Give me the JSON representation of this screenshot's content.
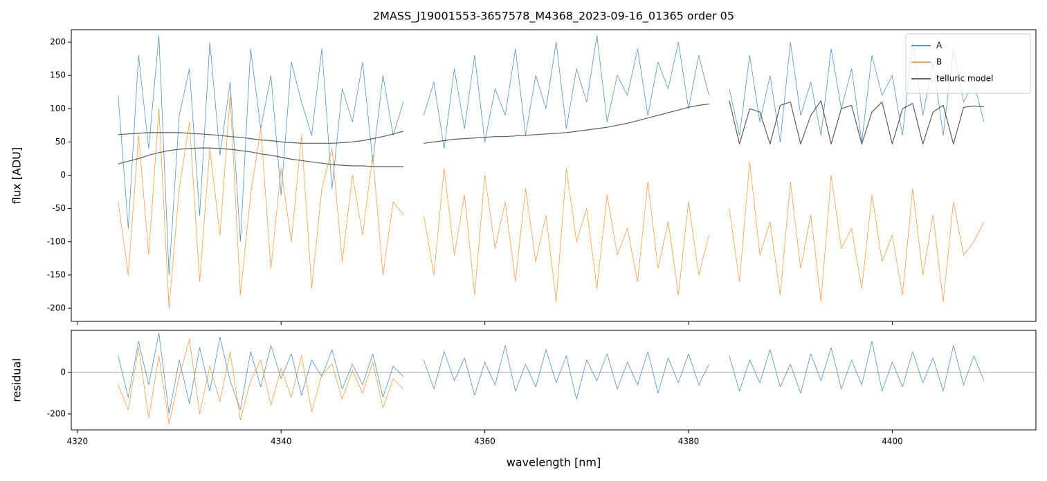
{
  "chart_data": [
    {
      "type": "line",
      "title": "2MASS_J19001553-3657578_M4368_2023-09-16_01365  order 05",
      "ylabel": "flux [ADU]",
      "legend": "upper right",
      "x": [
        4324,
        4325,
        4326,
        4327,
        4328,
        4329,
        4330,
        4331,
        4332,
        4333,
        4334,
        4335,
        4336,
        4337,
        4338,
        4339,
        4340,
        4341,
        4342,
        4343,
        4344,
        4345,
        4346,
        4347,
        4348,
        4349,
        4350,
        4351,
        4352,
        4353,
        4354,
        4355,
        4356,
        4357,
        4358,
        4359,
        4360,
        4361,
        4362,
        4363,
        4364,
        4365,
        4366,
        4367,
        4368,
        4369,
        4370,
        4371,
        4372,
        4373,
        4374,
        4375,
        4376,
        4377,
        4378,
        4379,
        4380,
        4381,
        4382,
        4383,
        4384,
        4385,
        4386,
        4387,
        4388,
        4389,
        4390,
        4391,
        4392,
        4393,
        4394,
        4395,
        4396,
        4397,
        4398,
        4399,
        4400,
        4401,
        4402,
        4403,
        4404,
        4405,
        4406,
        4407,
        4408,
        4409
      ],
      "series": [
        {
          "name": "A",
          "color": "#1f77b4",
          "values": [
            120,
            -80,
            180,
            40,
            210,
            -150,
            90,
            160,
            -60,
            200,
            30,
            140,
            -100,
            190,
            70,
            150,
            -30,
            170,
            110,
            60,
            190,
            -20,
            130,
            80,
            170,
            20,
            150,
            60,
            110,
            null,
            90,
            140,
            40,
            160,
            70,
            180,
            50,
            130,
            90,
            190,
            60,
            150,
            100,
            200,
            70,
            160,
            110,
            210,
            80,
            150,
            120,
            190,
            90,
            170,
            130,
            200,
            100,
            180,
            120,
            null,
            130,
            60,
            180,
            80,
            150,
            50,
            200,
            90,
            140,
            60,
            190,
            100,
            160,
            50,
            180,
            120,
            150,
            60,
            200,
            90,
            170,
            60,
            190,
            110,
            140,
            80
          ]
        },
        {
          "name": "B",
          "color": "#ff7f0e",
          "values": [
            -40,
            -150,
            60,
            -120,
            100,
            -200,
            -20,
            80,
            -160,
            40,
            -90,
            120,
            -180,
            -30,
            70,
            -140,
            10,
            -100,
            60,
            -170,
            -20,
            40,
            -130,
            0,
            -90,
            30,
            -150,
            -40,
            -60,
            null,
            -60,
            -150,
            10,
            -120,
            -30,
            -180,
            0,
            -110,
            -40,
            -160,
            -20,
            -130,
            -60,
            -190,
            10,
            -100,
            -50,
            -170,
            -30,
            -120,
            -80,
            -160,
            -10,
            -140,
            -70,
            -180,
            -40,
            -150,
            -90,
            null,
            -50,
            -160,
            20,
            -120,
            -70,
            -180,
            -10,
            -140,
            -60,
            -190,
            0,
            -110,
            -80,
            -170,
            -30,
            -130,
            -90,
            -180,
            -20,
            -150,
            -60,
            -190,
            -40,
            -120,
            -100,
            -70
          ]
        },
        {
          "name": "telluric model",
          "color": "#333333",
          "values": [
            61,
            62,
            63,
            64,
            64,
            64,
            64,
            63,
            62,
            61,
            60,
            58,
            57,
            55,
            53,
            52,
            50,
            49,
            48,
            48,
            48,
            48,
            49,
            50,
            52,
            55,
            58,
            62,
            66,
            null,
            48,
            50,
            52,
            54,
            55,
            56,
            57,
            58,
            58,
            59,
            60,
            61,
            62,
            63,
            64,
            66,
            68,
            70,
            72,
            75,
            78,
            82,
            86,
            90,
            94,
            98,
            102,
            105,
            107,
            null,
            112,
            47,
            100,
            95,
            47,
            105,
            110,
            47,
            90,
            112,
            47,
            100,
            105,
            47,
            95,
            110,
            47,
            100,
            108,
            47,
            95,
            105,
            47,
            102,
            104,
            103
          ]
        },
        {
          "color": "#333333",
          "values": [
            17,
            21,
            25,
            30,
            34,
            37,
            39,
            40,
            41,
            41,
            40,
            39,
            37,
            35,
            32,
            30,
            27,
            24,
            22,
            20,
            18,
            16,
            15,
            14,
            14,
            13,
            13,
            13,
            13,
            null,
            null,
            null,
            null,
            null,
            null,
            null,
            null,
            null,
            null,
            null,
            null,
            null,
            null,
            null,
            null,
            null,
            null,
            null,
            null,
            null,
            null,
            null,
            null,
            null,
            null,
            null,
            null,
            null,
            null,
            null,
            null,
            null,
            null,
            null,
            null,
            null,
            null,
            null,
            null,
            null,
            null,
            null,
            null,
            null,
            null,
            null,
            null,
            null,
            null,
            null,
            null,
            null,
            null,
            null,
            null,
            null
          ]
        }
      ],
      "xlim": [
        4319.4,
        4414.1
      ],
      "xticks": [
        4320,
        4340,
        4360,
        4380,
        4400
      ],
      "ylim": [
        -219.7,
        218.7
      ],
      "yticks": [
        -200,
        -150,
        -100,
        -50,
        0,
        50,
        100,
        150,
        200
      ]
    },
    {
      "type": "line",
      "ylabel": "residual",
      "xlabel": "wavelength [nm]",
      "zero_line": 0,
      "x": [
        4324,
        4325,
        4326,
        4327,
        4328,
        4329,
        4330,
        4331,
        4332,
        4333,
        4334,
        4335,
        4336,
        4337,
        4338,
        4339,
        4340,
        4341,
        4342,
        4343,
        4344,
        4345,
        4346,
        4347,
        4348,
        4349,
        4350,
        4351,
        4352,
        4353,
        4354,
        4355,
        4356,
        4357,
        4358,
        4359,
        4360,
        4361,
        4362,
        4363,
        4364,
        4365,
        4366,
        4367,
        4368,
        4369,
        4370,
        4371,
        4372,
        4373,
        4374,
        4375,
        4376,
        4377,
        4378,
        4379,
        4380,
        4381,
        4382,
        4383,
        4384,
        4385,
        4386,
        4387,
        4388,
        4389,
        4390,
        4391,
        4392,
        4393,
        4394,
        4395,
        4396,
        4397,
        4398,
        4399,
        4400,
        4401,
        4402,
        4403,
        4404,
        4405,
        4406,
        4407,
        4408,
        4409
      ],
      "series": [
        {
          "color": "#1f77b4",
          "values": [
            80,
            -120,
            150,
            -60,
            190,
            -200,
            60,
            -150,
            120,
            -90,
            170,
            -40,
            -180,
            100,
            -70,
            130,
            -30,
            90,
            -110,
            60,
            -20,
            110,
            -80,
            40,
            -60,
            90,
            -120,
            30,
            -20,
            null,
            60,
            -80,
            100,
            -40,
            70,
            -110,
            50,
            -60,
            130,
            -90,
            40,
            -70,
            110,
            -50,
            80,
            -130,
            60,
            -40,
            90,
            -80,
            50,
            -60,
            100,
            -100,
            70,
            -50,
            90,
            -60,
            40,
            null,
            80,
            -90,
            60,
            -50,
            110,
            -70,
            40,
            -100,
            90,
            -40,
            120,
            -80,
            60,
            -60,
            150,
            -90,
            50,
            -70,
            100,
            -50,
            70,
            -90,
            130,
            -60,
            80,
            -40
          ]
        },
        {
          "color": "#ff7f0e",
          "values": [
            -60,
            -180,
            120,
            -220,
            80,
            -250,
            -20,
            160,
            -200,
            30,
            -140,
            100,
            -230,
            -40,
            60,
            -160,
            20,
            -120,
            80,
            -190,
            -10,
            40,
            -130,
            10,
            -100,
            50,
            -170,
            -30,
            -80,
            null,
            null,
            null,
            null,
            null,
            null,
            null,
            null,
            null,
            null,
            null,
            null,
            null,
            null,
            null,
            null,
            null,
            null,
            null,
            null,
            null,
            null,
            null,
            null,
            null,
            null,
            null,
            null,
            null,
            null,
            null,
            null,
            null,
            null,
            null,
            null,
            null,
            null,
            null,
            null,
            null,
            null,
            null,
            null,
            null,
            null,
            null,
            null,
            null,
            null,
            null,
            null,
            null,
            null,
            null,
            null,
            null
          ]
        }
      ],
      "xlim": [
        4319.4,
        4414.1
      ],
      "xticks": [
        4320,
        4340,
        4360,
        4380,
        4400
      ],
      "ylim": [
        -277,
        203
      ],
      "yticks": [
        -200,
        0
      ]
    }
  ]
}
